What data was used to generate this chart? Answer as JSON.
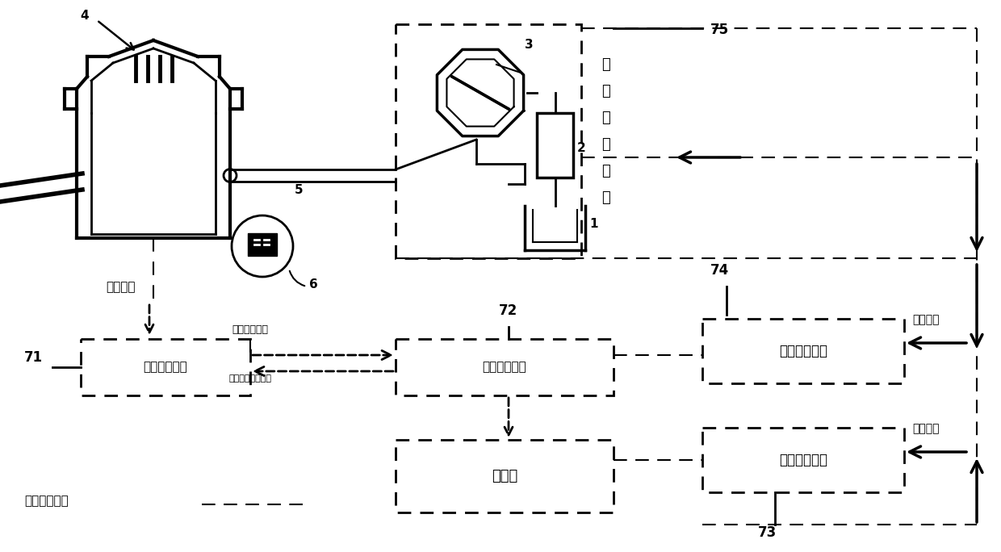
{
  "bg_color": "#ffffff",
  "fig_width": 12.4,
  "fig_height": 6.84,
  "labels": {
    "label4": "4",
    "label5": "5",
    "label6": "6",
    "label1": "1",
    "label2": "2",
    "label3": "3",
    "label71": "71",
    "label72": "72",
    "label73": "73",
    "label74": "74",
    "label75": "75",
    "furnace_info": "炉况信息",
    "furnace_judge": "炉况判断模块",
    "demand_analysis": "需求分析模块",
    "database": "数据库",
    "flow_calc": "流量计算模块",
    "temp_calc": "温度计算模块",
    "supply_exec": "供氧执行模块",
    "process_signal": "过程控制信号",
    "furnace_feature": "炉况特征信号",
    "supply_demand": "供氧需求控制指令",
    "oxygen_flow": "氧气流量",
    "oxygen_temp": "氧气温度"
  }
}
